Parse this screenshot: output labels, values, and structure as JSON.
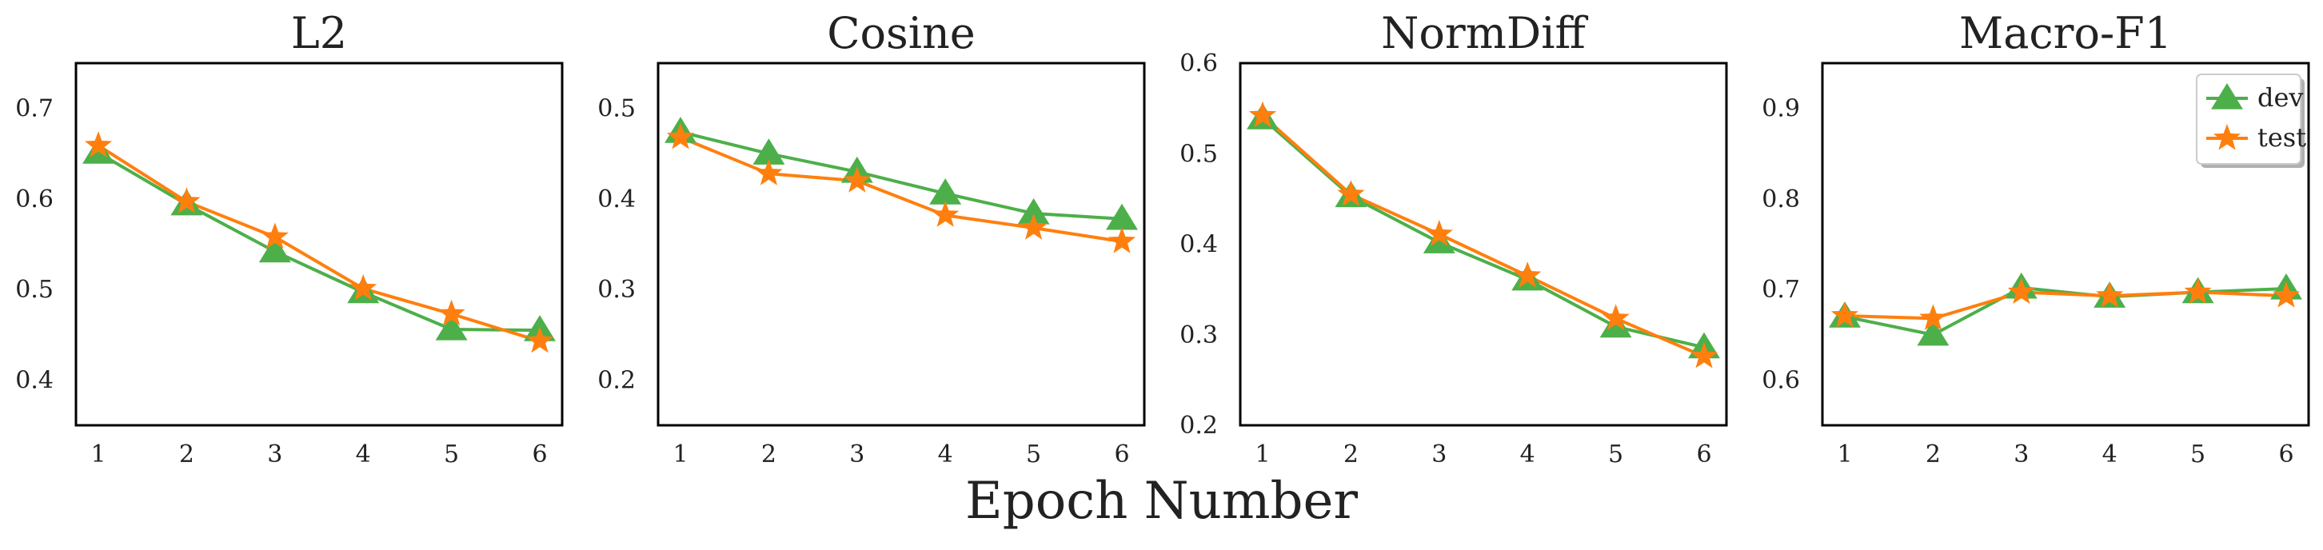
{
  "chart_data": [
    {
      "type": "line",
      "title": "L2",
      "x": [
        1,
        2,
        3,
        4,
        5,
        6
      ],
      "ylim": [
        0.35,
        0.75
      ],
      "yticks": [
        0.4,
        0.5,
        0.6,
        0.7
      ],
      "ytick_labels": [
        "0.4",
        "0.5",
        "0.6",
        "0.7"
      ],
      "series": [
        {
          "name": "dev",
          "values": [
            0.651,
            0.594,
            0.542,
            0.497,
            0.456,
            0.455
          ]
        },
        {
          "name": "test",
          "values": [
            0.659,
            0.597,
            0.558,
            0.501,
            0.473,
            0.443
          ]
        }
      ]
    },
    {
      "type": "line",
      "title": "Cosine",
      "x": [
        1,
        2,
        3,
        4,
        5,
        6
      ],
      "ylim": [
        0.15,
        0.55
      ],
      "yticks": [
        0.2,
        0.3,
        0.4,
        0.5
      ],
      "ytick_labels": [
        "0.2",
        "0.3",
        "0.4",
        "0.5"
      ],
      "series": [
        {
          "name": "dev",
          "values": [
            0.474,
            0.45,
            0.43,
            0.406,
            0.384,
            0.378
          ]
        },
        {
          "name": "test",
          "values": [
            0.468,
            0.428,
            0.42,
            0.382,
            0.368,
            0.353
          ]
        }
      ]
    },
    {
      "type": "line",
      "title": "NormDiff",
      "x": [
        1,
        2,
        3,
        4,
        5,
        6
      ],
      "ylim": [
        0.2,
        0.6
      ],
      "yticks": [
        0.2,
        0.3,
        0.4,
        0.5,
        0.6
      ],
      "ytick_labels": [
        "0.2",
        "0.3",
        "0.4",
        "0.5",
        "0.6"
      ],
      "series": [
        {
          "name": "dev",
          "values": [
            0.539,
            0.453,
            0.402,
            0.361,
            0.309,
            0.286
          ]
        },
        {
          "name": "test",
          "values": [
            0.542,
            0.455,
            0.411,
            0.365,
            0.318,
            0.276
          ]
        }
      ]
    },
    {
      "type": "line",
      "title": "Macro-F1",
      "x": [
        1,
        2,
        3,
        4,
        5,
        6
      ],
      "ylim": [
        0.55,
        0.95
      ],
      "yticks": [
        0.6,
        0.7,
        0.8,
        0.9
      ],
      "ytick_labels": [
        "0.6",
        "0.7",
        "0.8",
        "0.9"
      ],
      "legend": "top-right",
      "series": [
        {
          "name": "dev",
          "values": [
            0.67,
            0.65,
            0.702,
            0.692,
            0.697,
            0.701
          ]
        },
        {
          "name": "test",
          "values": [
            0.671,
            0.668,
            0.697,
            0.693,
            0.697,
            0.693
          ]
        }
      ]
    }
  ],
  "xlabel": "Epoch Number",
  "colors": {
    "dev": "#4daf4a",
    "test": "#ff7f0e",
    "axes": "#000000",
    "text": "#222222"
  },
  "markers": {
    "dev": "triangle",
    "test": "star"
  }
}
